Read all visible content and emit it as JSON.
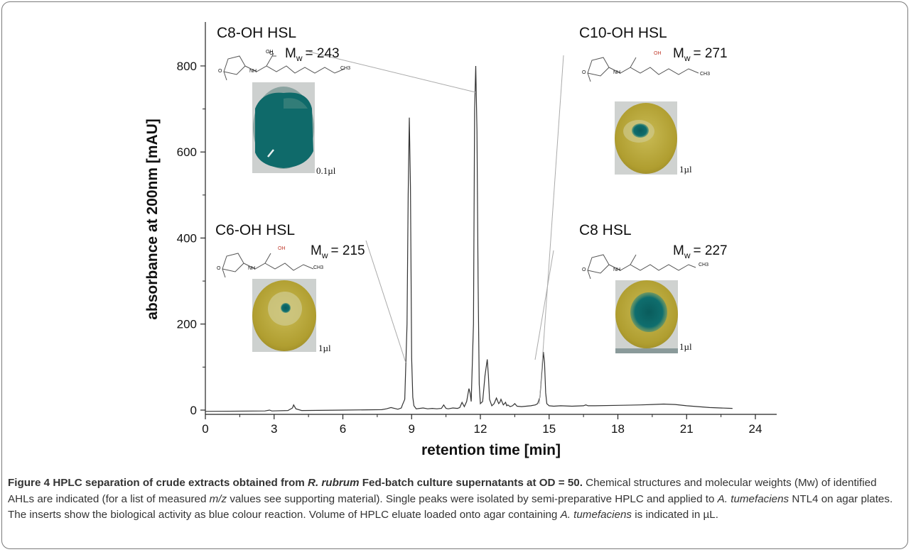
{
  "chart_data": {
    "type": "line",
    "xlabel": "retention time [min]",
    "ylabel": "absorbance at 200nm [mAU]",
    "xlim": [
      0,
      25
    ],
    "ylim": [
      -15,
      890
    ],
    "xticks": [
      "0",
      "3",
      "6",
      "9",
      "12",
      "15",
      "18",
      "21",
      "24"
    ],
    "yticks": [
      "0",
      "200",
      "400",
      "600",
      "800"
    ],
    "grid": false,
    "series": [
      {
        "x": [
          0,
          2.6,
          2.8,
          2.9,
          3.6,
          3.8,
          3.85,
          3.95,
          4.2,
          6,
          7.7,
          7.9,
          8.1,
          8.4,
          8.55,
          8.6,
          8.7,
          8.8,
          8.85,
          8.9,
          8.95,
          9.0,
          9.05,
          9.1,
          9.2,
          9.5,
          9.7,
          9.9,
          10.1,
          10.3,
          10.4,
          10.5,
          10.6,
          10.8,
          11.0,
          11.1,
          11.2,
          11.3,
          11.4,
          11.5,
          11.55,
          11.6,
          11.7,
          11.75,
          11.8,
          11.85,
          11.9,
          11.95,
          12.0,
          12.1,
          12.2,
          12.3,
          12.35,
          12.4,
          12.5,
          12.6,
          12.7,
          12.8,
          12.85,
          12.9,
          13.0,
          13.1,
          13.15,
          13.2,
          13.3,
          13.4,
          13.5,
          13.6,
          13.8,
          14.0,
          14.2,
          14.4,
          14.5,
          14.6,
          14.7,
          14.75,
          14.8,
          14.85,
          14.9,
          15.0,
          15.2,
          15.5,
          16.0,
          16.5,
          16.6,
          16.7,
          17.0,
          18.0,
          19.0,
          19.5,
          20.0,
          20.5,
          21.0,
          22.0,
          23.0
        ],
        "y": [
          -3,
          -2,
          0,
          -2,
          -1,
          5,
          12,
          3,
          -1,
          0,
          1,
          3,
          6,
          2,
          5,
          12,
          25,
          200,
          500,
          680,
          520,
          120,
          30,
          10,
          3,
          5,
          3,
          4,
          3,
          4,
          12,
          4,
          3,
          5,
          4,
          6,
          18,
          8,
          20,
          50,
          40,
          20,
          200,
          700,
          800,
          650,
          300,
          60,
          15,
          20,
          80,
          118,
          80,
          25,
          10,
          15,
          28,
          15,
          18,
          25,
          12,
          18,
          10,
          12,
          8,
          10,
          15,
          9,
          8,
          9,
          10,
          12,
          15,
          30,
          100,
          135,
          110,
          40,
          15,
          10,
          9,
          10,
          9,
          10,
          12,
          10,
          10,
          11,
          12,
          13,
          14,
          13,
          10,
          6,
          4
        ]
      }
    ],
    "annotations": [
      {
        "name": "C8-OH HSL",
        "mw_prefix": "M",
        "mw_sub": "w",
        "mw_value": "= 243",
        "volume": "0.1µl"
      },
      {
        "name": "C10-OH HSL",
        "mw_prefix": "M",
        "mw_sub": "w",
        "mw_value": "= 271",
        "volume": "1µl"
      },
      {
        "name": "C6-OH HSL",
        "mw_prefix": "M",
        "mw_sub": "w",
        "mw_value": "= 215",
        "volume": "1µl"
      },
      {
        "name": "C8 HSL",
        "mw_prefix": "M",
        "mw_sub": "w",
        "mw_value": "= 227",
        "volume": "1µl"
      }
    ],
    "chem_labels": {
      "oh": "OH",
      "nh": "NH",
      "o": "O",
      "ch3": "CH3"
    }
  },
  "caption": {
    "figure_label": "Figure 4",
    "title_a": "HPLC separation of crude extracts obtained from ",
    "title_italic": "R. rubrum",
    "title_b": " Fed-batch culture supernatants at OD = 50.",
    "text_a": " Chemical structures and molecular weights (Mw) of identified AHLs are indicated (for a list of measured ",
    "text_mz": "m/z",
    "text_b": " values see supporting material). Single peaks were isolated by semi-preparative HPLC and applied to ",
    "text_at1": "A. tumefaciens",
    "text_c": " NTL4 on agar plates. The inserts show the biological activity as blue colour reaction. Volume of HPLC eluate loaded onto agar containing ",
    "text_at2": "A. tumefaciens",
    "text_d": " is indicated in µL."
  },
  "colors": {
    "trace": "#333333",
    "agar": "#b7a63a",
    "agar_light": "#d4c97a",
    "stain": "#0f6a6a",
    "plate_bg": "#cfd3d2"
  }
}
